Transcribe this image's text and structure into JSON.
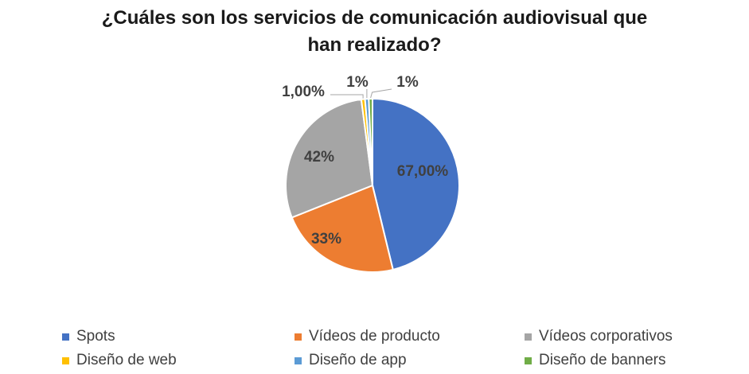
{
  "chart_data": {
    "type": "pie",
    "title": "¿Cuáles son los servicios de comunicación audiovisual que han realizado?",
    "title_lines": [
      "¿Cuáles son los servicios de comunicación audiovisual que",
      "han realizado?"
    ],
    "legend_placement": "bottom",
    "slices": [
      {
        "name": "Spots",
        "value": 67,
        "label": "67,00%",
        "color": "#4472C4"
      },
      {
        "name": "Vídeos de producto",
        "value": 33,
        "label": "33%",
        "color": "#ED7D31"
      },
      {
        "name": "Vídeos corporativos",
        "value": 42,
        "label": "42%",
        "color": "#A5A5A5"
      },
      {
        "name": "Diseño de web",
        "value": 1,
        "label": "1,00%",
        "color": "#FFC000"
      },
      {
        "name": "Diseño de app",
        "value": 1,
        "label": "1%",
        "color": "#5B9BD5"
      },
      {
        "name": "Diseño de banners",
        "value": 1,
        "label": "1%",
        "color": "#70AD47"
      }
    ]
  }
}
